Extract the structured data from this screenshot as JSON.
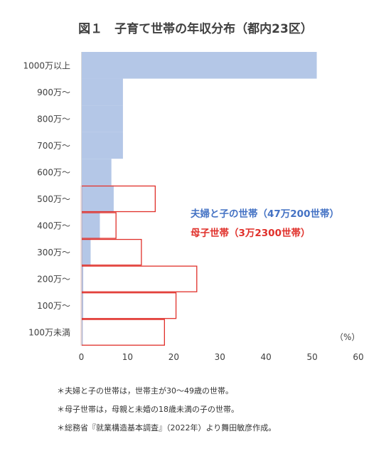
{
  "chart_data": {
    "type": "bar",
    "orientation": "horizontal",
    "title": "図１　子育て世帯の年収分布（都内23区）",
    "categories": [
      "1000万以上",
      "900万～",
      "800万～",
      "700万～",
      "600万～",
      "500万～",
      "400万～",
      "300万～",
      "200万～",
      "100万～",
      "100万未満"
    ],
    "x_unit": "（%）",
    "xlim": [
      0,
      60
    ],
    "x_ticks": [
      0,
      10,
      20,
      30,
      40,
      50,
      60
    ],
    "grid": false,
    "series": [
      {
        "name": "夫婦と子の世帯（47万200世帯）",
        "style": "filled",
        "color": "#b4c7e7",
        "values": [
          51.0,
          9.0,
          9.0,
          9.0,
          6.5,
          7.0,
          4.0,
          2.0,
          0.4,
          0.4,
          0.3
        ]
      },
      {
        "name": "母子世帯（3万2300世帯）",
        "style": "outline",
        "color": "#e0302a",
        "values": [
          0,
          0,
          0,
          0,
          0,
          16.0,
          7.5,
          13.0,
          25.0,
          20.5,
          18.0
        ]
      }
    ],
    "legend_position": "right-middle",
    "legend_colors": [
      "#4472c4",
      "#e0302a"
    ],
    "notes": [
      "＊夫婦と子の世帯は，世帯主が30～49歳の世帯。",
      "＊母子世帯は，母親と未婚の18歳未満の子の世帯。",
      "＊総務省『就業構造基本調査』（2022年）より舞田敏彦作成。"
    ]
  }
}
